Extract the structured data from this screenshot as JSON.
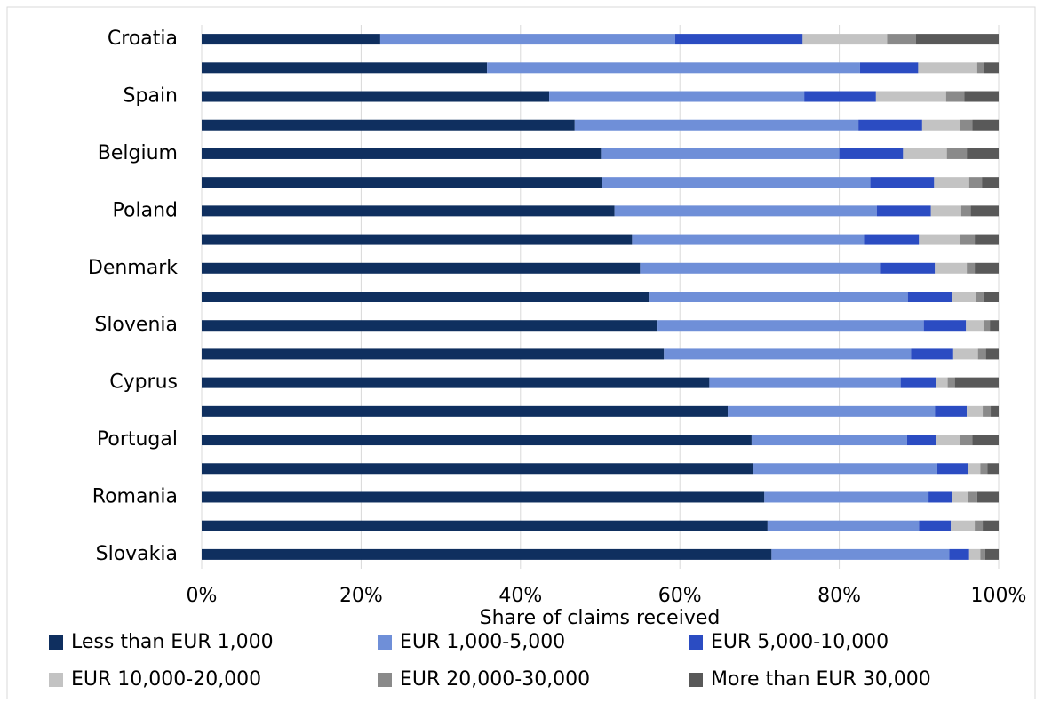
{
  "chart_data": {
    "type": "stacked-barh",
    "categories": [
      "Croatia",
      null,
      "Spain",
      null,
      "Belgium",
      null,
      "Poland",
      null,
      "Denmark",
      null,
      "Slovenia",
      null,
      "Cyprus",
      null,
      "Portugal",
      null,
      "Romania",
      null,
      "Slovakia"
    ],
    "series": [
      {
        "name": "Less than EUR 1,000",
        "color": "#0f2f5f",
        "values": [
          22.4,
          35.8,
          43.6,
          46.8,
          50.1,
          50.2,
          51.8,
          54.0,
          55.0,
          56.1,
          57.2,
          58.0,
          63.7,
          66.0,
          69.0,
          69.2,
          70.6,
          71.0,
          71.5
        ]
      },
      {
        "name": "EUR 1,000-5,000",
        "color": "#6f8fd8",
        "values": [
          37.0,
          46.8,
          32.0,
          35.6,
          29.9,
          33.7,
          32.9,
          29.1,
          30.1,
          32.5,
          33.4,
          31.0,
          24.0,
          26.0,
          19.5,
          23.1,
          20.6,
          19.0,
          22.3
        ]
      },
      {
        "name": "EUR 5,000-10,000",
        "color": "#2b4cc2",
        "values": [
          16.0,
          7.3,
          9.0,
          8.0,
          8.0,
          8.0,
          6.8,
          6.9,
          6.9,
          5.6,
          5.3,
          5.3,
          4.4,
          4.0,
          3.7,
          3.8,
          3.0,
          4.0,
          2.5
        ]
      },
      {
        "name": "EUR 10,000-20,000",
        "color": "#c3c3c3",
        "values": [
          10.6,
          7.4,
          8.8,
          4.7,
          5.5,
          4.4,
          3.8,
          5.1,
          4.0,
          3.0,
          2.2,
          3.1,
          1.5,
          2.0,
          2.9,
          1.6,
          2.0,
          3.0,
          1.4
        ]
      },
      {
        "name": "EUR 20,000-30,000",
        "color": "#8a8a8a",
        "values": [
          3.6,
          0.9,
          2.3,
          1.6,
          2.5,
          1.6,
          1.2,
          1.9,
          1.0,
          0.9,
          0.8,
          1.0,
          0.9,
          1.0,
          1.6,
          0.9,
          1.1,
          1.0,
          0.6
        ]
      },
      {
        "name": "More than EUR 30,000",
        "color": "#595959",
        "values": [
          10.4,
          1.8,
          4.3,
          3.3,
          4.0,
          2.1,
          3.5,
          3.0,
          3.0,
          1.9,
          1.1,
          1.6,
          5.5,
          1.0,
          3.3,
          1.4,
          2.7,
          2.0,
          1.7
        ]
      }
    ],
    "xlabel": "Share of claims received",
    "xlim": [
      0,
      100
    ],
    "xticks": [
      {
        "value": 0,
        "label": "0%"
      },
      {
        "value": 20,
        "label": "20%"
      },
      {
        "value": 40,
        "label": "40%"
      },
      {
        "value": 60,
        "label": "60%"
      },
      {
        "value": 80,
        "label": "80%"
      },
      {
        "value": 100,
        "label": "100%"
      }
    ],
    "grid": true,
    "legend": "bottom"
  }
}
